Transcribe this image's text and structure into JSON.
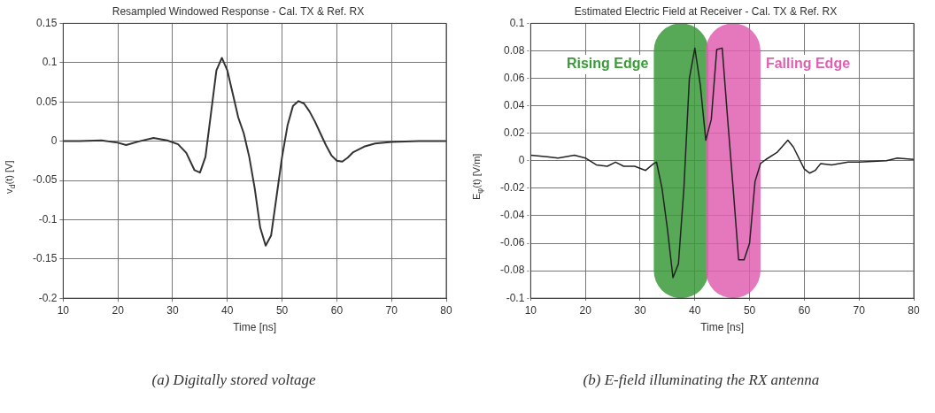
{
  "chart_data": [
    {
      "type": "line",
      "title": "Resampled Windowed Response - Cal. TX & Ref. RX",
      "xlabel": "Time [ns]",
      "ylabel": "v$_{d}$(t) [V]",
      "x": [
        10,
        13,
        17,
        20,
        21.5,
        24,
        26.5,
        29,
        31,
        32.5,
        34,
        35,
        36,
        37,
        38,
        39,
        40,
        41,
        42,
        43,
        44,
        45,
        46,
        47,
        48,
        49,
        50,
        51,
        52,
        53,
        54,
        55,
        56,
        57,
        58,
        59,
        60,
        61,
        62,
        63,
        65,
        67,
        70,
        75,
        80
      ],
      "series": [
        {
          "color": "#333333",
          "values": [
            0,
            0,
            0.001,
            -0.002,
            -0.005,
            0,
            0.004,
            0.001,
            -0.004,
            -0.015,
            -0.037,
            -0.04,
            -0.02,
            0.035,
            0.09,
            0.106,
            0.09,
            0.06,
            0.03,
            0.01,
            -0.02,
            -0.06,
            -0.11,
            -0.133,
            -0.12,
            -0.07,
            -0.02,
            0.02,
            0.045,
            0.051,
            0.048,
            0.038,
            0.025,
            0.01,
            -0.005,
            -0.018,
            -0.025,
            -0.026,
            -0.021,
            -0.014,
            -0.007,
            -0.003,
            -0.001,
            0,
            0
          ]
        }
      ],
      "xlim": [
        10,
        80
      ],
      "xticks": [
        10,
        20,
        30,
        40,
        50,
        60,
        70,
        80
      ],
      "ylim": [
        -0.2,
        0.15
      ],
      "yticks": [
        -0.2,
        -0.15,
        -0.1,
        -0.05,
        0,
        0.05,
        0.1,
        0.15
      ],
      "grid": true,
      "legend": false,
      "line_style": "solid",
      "marker": "none",
      "annotations": [
        "(a) Digitally stored voltage"
      ]
    },
    {
      "type": "line",
      "title": "Estimated Electric Field at Receiver - Cal. TX & Ref. RX",
      "xlabel": "Time [ns]",
      "ylabel": "E$_{φ}$(t) [V/m]",
      "x": [
        10,
        13,
        15,
        18,
        20,
        22,
        24,
        25.5,
        27,
        29,
        31,
        32.5,
        33,
        34,
        35,
        36,
        37,
        38,
        39,
        40,
        41,
        42,
        43,
        44,
        45,
        46,
        47,
        48,
        49,
        50,
        51,
        52,
        53,
        55,
        57,
        58,
        60,
        61,
        62,
        63,
        65,
        68,
        70,
        75,
        77,
        80
      ],
      "series": [
        {
          "color": "#222222",
          "values": [
            0.004,
            0.003,
            0.002,
            0.004,
            0.002,
            -0.003,
            -0.004,
            -0.001,
            -0.004,
            -0.004,
            -0.007,
            -0.002,
            -0.001,
            -0.02,
            -0.05,
            -0.085,
            -0.075,
            -0.02,
            0.06,
            0.082,
            0.055,
            0.015,
            0.03,
            0.081,
            0.082,
            0.03,
            -0.02,
            -0.072,
            -0.072,
            -0.06,
            -0.015,
            -0.002,
            0.001,
            0.006,
            0.015,
            0.01,
            -0.006,
            -0.009,
            -0.007,
            -0.002,
            -0.003,
            -0.001,
            -0.001,
            0,
            0.002,
            0.001
          ]
        }
      ],
      "xlim": [
        10,
        80
      ],
      "xticks": [
        10,
        20,
        30,
        40,
        50,
        60,
        70,
        80
      ],
      "ylim": [
        -0.1,
        0.1
      ],
      "yticks": [
        -0.1,
        -0.08,
        -0.06,
        -0.04,
        -0.02,
        0,
        0.02,
        0.04,
        0.06,
        0.08,
        0.1
      ],
      "grid": true,
      "legend": false,
      "line_style": "solid",
      "marker": "none",
      "bands": [
        {
          "axis": "x",
          "from": 32.5,
          "to": 42.5,
          "label": "Rising Edge",
          "color": "#3a9a3a"
        },
        {
          "axis": "x",
          "from": 42,
          "to": 52,
          "label": "Falling Edge",
          "color": "#e060b0"
        }
      ],
      "annotations": [
        "(b) E-field illuminating the RX antenna"
      ]
    }
  ]
}
